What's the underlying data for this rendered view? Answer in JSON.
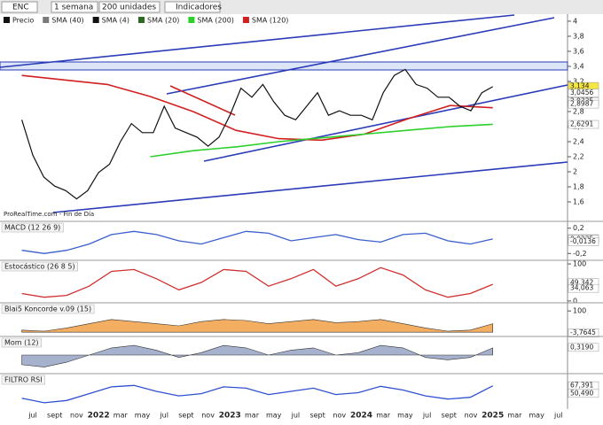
{
  "toolbar": {
    "symbol": "ENC",
    "period": "1 semana",
    "units": "200 unidades",
    "indicators": "Indicadores"
  },
  "legend": [
    "Precio",
    "SMA (40)",
    "SMA (4)",
    "SMA (20)",
    "SMA (200)",
    "SMA (120)"
  ],
  "watermark": "ProRealTime.com - Fin de Día",
  "price_panel": {
    "ylim": [
      1.365,
      4.07
    ],
    "yticks": [
      4,
      {
        "value": 3.8,
        "label": "3,8"
      },
      {
        "value": 3.6,
        "label": "3,6"
      },
      {
        "value": 3.4,
        "label": "3,4"
      },
      {
        "value": 3.2,
        "label": "3,2"
      },
      3,
      {
        "value": 2.8,
        "label": "2,8"
      },
      {
        "value": 2.6,
        "label": "2,6"
      },
      {
        "value": 2.4,
        "label": "2,4"
      },
      {
        "value": 2.2,
        "label": "2,2"
      },
      2,
      {
        "value": 1.8,
        "label": "1,8"
      },
      {
        "value": 1.6,
        "label": "1,6"
      }
    ],
    "close": [
      2.69,
      2.22,
      1.93,
      1.81,
      1.75,
      1.64,
      1.75,
      1.99,
      2.1,
      2.4,
      2.64,
      2.52,
      2.52,
      2.87,
      2.58,
      2.52,
      2.46,
      2.34,
      2.46,
      2.75,
      3.11,
      2.99,
      3.16,
      2.93,
      2.75,
      2.69,
      2.87,
      3.05,
      2.75,
      2.81,
      2.75,
      2.75,
      2.69,
      3.05,
      3.28,
      3.36,
      3.16,
      3.11,
      2.99,
      2.99,
      2.87,
      2.81,
      3.05,
      3.13
    ],
    "sma120": [
      3.28,
      3.22,
      3.16,
      3.0,
      2.8,
      2.55,
      2.44,
      2.42,
      2.5,
      2.7,
      2.88,
      2.85
    ],
    "sma200": [
      null,
      null,
      null,
      2.2,
      2.28,
      2.33,
      2.4,
      2.45,
      2.5,
      2.55,
      2.6,
      2.63
    ],
    "last_labels": [
      {
        "value": 3.134,
        "label": "3,134",
        "color": "#f5e642"
      },
      {
        "value": 3.0456,
        "label": "3,0456",
        "color": "#ffffff"
      },
      {
        "value": 2.9325,
        "label": "2,9325",
        "color": "#ffffff"
      },
      {
        "value": 2.8987,
        "label": "2,8987",
        "color": "#ffffff"
      },
      {
        "value": 2.6291,
        "label": "2,6291",
        "color": "#ffffff"
      }
    ]
  },
  "panels": [
    {
      "title": "MACD (12 26 9)",
      "ylim": [
        -0.28,
        0.28
      ],
      "ticks": [
        {
          "value": 0.2,
          "label": "0,2"
        },
        {
          "value": -0.2,
          "label": "-0,2"
        }
      ],
      "color": "#3a5fcd",
      "values": [
        -0.15,
        -0.2,
        -0.15,
        -0.05,
        0.1,
        0.15,
        0.1,
        0,
        -0.05,
        0.05,
        0.15,
        0.12,
        0,
        0.05,
        0.1,
        0.02,
        -0.02,
        0.1,
        0.12,
        0,
        -0.05,
        0.03
      ],
      "last_labels": [
        {
          "value": 0.0348,
          "label": "0,0348"
        },
        {
          "value": 0.0235,
          "label": "0,0235"
        },
        {
          "value": -0.0136,
          "label": "-0,0136"
        }
      ]
    },
    {
      "title": "Estocástico (26 8 5)",
      "ylim": [
        -5,
        105
      ],
      "ticks": [
        100,
        0
      ],
      "color": "#d03030",
      "values": [
        20,
        10,
        15,
        40,
        80,
        85,
        60,
        30,
        50,
        85,
        80,
        40,
        60,
        85,
        40,
        60,
        90,
        70,
        30,
        10,
        20,
        45
      ],
      "last_labels": [
        {
          "value": 49.342,
          "label": "49,342"
        },
        {
          "value": 34.063,
          "label": "34,063"
        }
      ]
    },
    {
      "title": "Blai5 Koncorde v.09 (15)",
      "ylim": [
        -20,
        130
      ],
      "ticks": [
        100
      ],
      "color": "#f08c1e",
      "values": [
        10,
        5,
        20,
        40,
        60,
        50,
        40,
        30,
        50,
        60,
        55,
        40,
        50,
        60,
        45,
        50,
        60,
        40,
        20,
        5,
        10,
        40
      ],
      "last_labels": [
        {
          "value": -3.7645,
          "label": "-3,7645"
        }
      ]
    },
    {
      "title": "Mom (12)",
      "ylim": [
        -0.7,
        0.7
      ],
      "ticks": [],
      "color": "#8090b8",
      "values": [
        -0.4,
        -0.5,
        -0.3,
        0,
        0.3,
        0.4,
        0.2,
        -0.1,
        0.1,
        0.4,
        0.3,
        0,
        0.2,
        0.3,
        0,
        0.1,
        0.4,
        0.3,
        -0.1,
        -0.2,
        -0.1,
        0.3
      ],
      "last_labels": [
        {
          "value": 0.319,
          "label": "0,3190"
        }
      ]
    },
    {
      "title": "FILTRO RSI",
      "ylim": [
        20,
        90
      ],
      "ticks": [],
      "color": "#3050d0",
      "values": [
        40,
        30,
        35,
        50,
        65,
        68,
        55,
        45,
        50,
        65,
        62,
        48,
        55,
        62,
        48,
        52,
        66,
        58,
        45,
        38,
        42,
        67
      ],
      "last_labels": [
        {
          "value": 67.391,
          "label": "67,391"
        },
        {
          "value": 50.49,
          "label": "50,490"
        }
      ]
    }
  ],
  "x_labels": [
    "jul",
    "sept",
    "nov",
    "2022",
    "mar",
    "may",
    "jul",
    "sept",
    "nov",
    "2023",
    "mar",
    "may",
    "jul",
    "sept",
    "nov",
    "2024",
    "mar",
    "may",
    "jul",
    "sept",
    "nov",
    "2025",
    "mar",
    "may",
    "jul"
  ]
}
